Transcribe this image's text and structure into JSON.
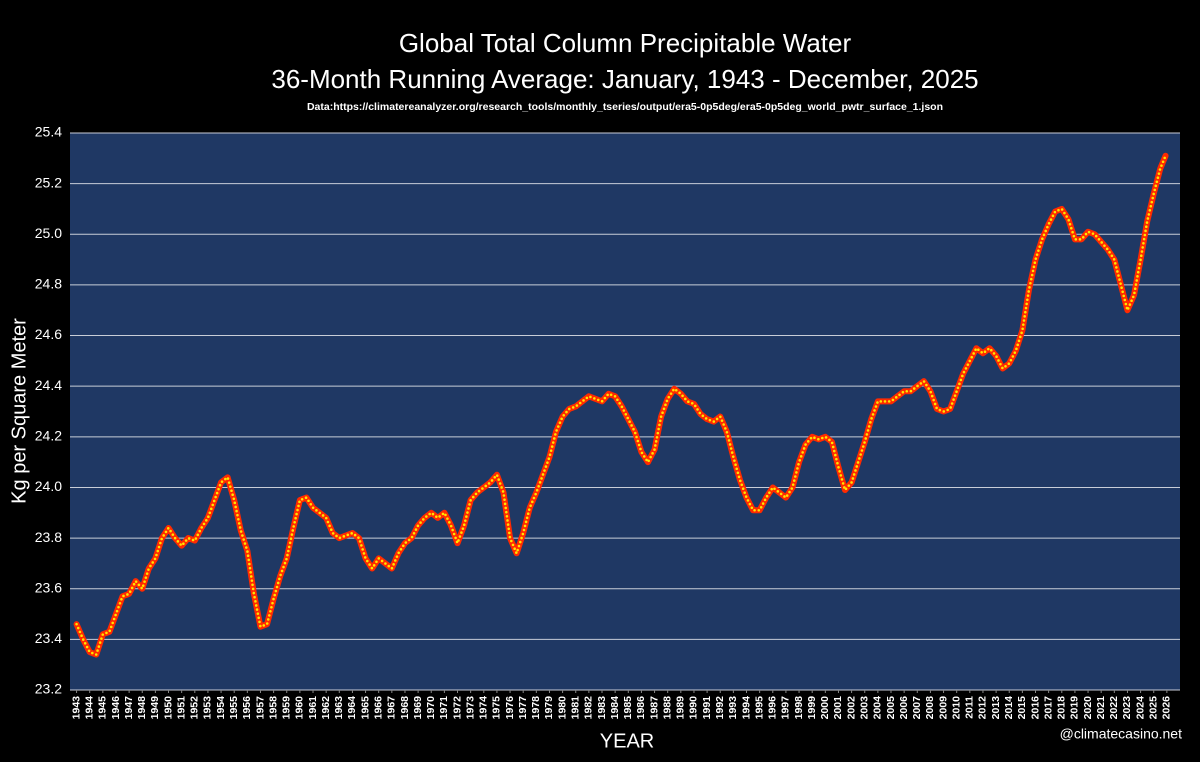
{
  "chart_data": {
    "type": "line",
    "title": "Global Total Column Precipitable Water",
    "subtitle": "36-Month Running Average: January, 1943 - December, 2025",
    "source": "Data:https://climatereanalyzer.org/research_tools/monthly_tseries/output/era5-0p5deg/era5-0p5deg_world_pwtr_surface_1.json",
    "xlabel": "YEAR",
    "ylabel": "Kg per Square Meter",
    "credit": "@climatecasino.net",
    "xlim": [
      1942.5,
      2027
    ],
    "ylim": [
      23.2,
      25.4
    ],
    "yticks": [
      23.2,
      23.4,
      23.6,
      23.8,
      {
        "value": 24,
        "label": "24.0"
      },
      24.2,
      24.4,
      24.6,
      24.8,
      {
        "value": 25,
        "label": "25.0"
      },
      25.2,
      25.4
    ],
    "xticks": [
      1943,
      1944,
      1945,
      1946,
      1947,
      1948,
      1949,
      1950,
      1951,
      1952,
      1953,
      1954,
      1955,
      1956,
      1957,
      1958,
      1959,
      1960,
      1961,
      1962,
      1963,
      1964,
      1965,
      1966,
      1967,
      1968,
      1969,
      1970,
      1971,
      1972,
      1973,
      1974,
      1975,
      1976,
      1977,
      1978,
      1979,
      1980,
      1981,
      1982,
      1983,
      1984,
      1985,
      1986,
      1987,
      1988,
      1989,
      1990,
      1991,
      1992,
      1993,
      1994,
      1995,
      1996,
      1997,
      1998,
      1999,
      2000,
      2001,
      2002,
      2003,
      2004,
      2005,
      2006,
      2007,
      2008,
      2009,
      2010,
      2011,
      2012,
      2013,
      2014,
      2015,
      2016,
      2017,
      2018,
      2019,
      2020,
      2021,
      2022,
      2023,
      2024,
      2025,
      2026
    ],
    "grid": true,
    "background": "#000000",
    "plot_color": "#1f3864",
    "series": [
      {
        "line_color": "#ff2a00",
        "marker_color": "#ffe600",
        "x": [
          1943.0,
          1943.5,
          1944.0,
          1944.5,
          1945.0,
          1945.5,
          1946.0,
          1946.5,
          1947.0,
          1947.5,
          1948.0,
          1948.5,
          1949.0,
          1949.5,
          1950.0,
          1950.5,
          1951.0,
          1951.5,
          1952.0,
          1952.5,
          1953.0,
          1953.5,
          1954.0,
          1954.5,
          1955.0,
          1955.5,
          1956.0,
          1956.5,
          1957.0,
          1957.5,
          1958.0,
          1958.5,
          1959.0,
          1959.5,
          1960.0,
          1960.5,
          1961.0,
          1961.5,
          1962.0,
          1962.5,
          1963.0,
          1963.5,
          1964.0,
          1964.5,
          1965.0,
          1965.5,
          1966.0,
          1966.5,
          1967.0,
          1967.5,
          1968.0,
          1968.5,
          1969.0,
          1969.5,
          1970.0,
          1970.5,
          1971.0,
          1971.5,
          1972.0,
          1972.5,
          1973.0,
          1973.5,
          1974.0,
          1974.5,
          1975.0,
          1975.5,
          1976.0,
          1976.5,
          1977.0,
          1977.5,
          1978.0,
          1978.5,
          1979.0,
          1979.5,
          1980.0,
          1980.5,
          1981.0,
          1981.5,
          1982.0,
          1982.5,
          1983.0,
          1983.5,
          1984.0,
          1984.5,
          1985.0,
          1985.5,
          1986.0,
          1986.5,
          1987.0,
          1987.5,
          1988.0,
          1988.5,
          1989.0,
          1989.5,
          1990.0,
          1990.5,
          1991.0,
          1991.5,
          1992.0,
          1992.5,
          1993.0,
          1993.5,
          1994.0,
          1994.5,
          1995.0,
          1995.5,
          1996.0,
          1996.5,
          1997.0,
          1997.5,
          1998.0,
          1998.5,
          1999.0,
          1999.5,
          2000.0,
          2000.5,
          2001.0,
          2001.5,
          2002.0,
          2002.5,
          2003.0,
          2003.5,
          2004.0,
          2004.5,
          2005.0,
          2005.5,
          2006.0,
          2006.5,
          2007.0,
          2007.5,
          2008.0,
          2008.5,
          2009.0,
          2009.5,
          2010.0,
          2010.5,
          2011.0,
          2011.5,
          2012.0,
          2012.5,
          2013.0,
          2013.5,
          2014.0,
          2014.5,
          2015.0,
          2015.5,
          2016.0,
          2016.5,
          2017.0,
          2017.5,
          2018.0,
          2018.5,
          2019.0,
          2019.5,
          2020.0,
          2020.5,
          2021.0,
          2021.5,
          2022.0,
          2022.5,
          2023.0,
          2023.5,
          2024.0,
          2024.5,
          2025.0,
          2025.5,
          2025.9
        ],
        "values": [
          23.46,
          23.4,
          23.35,
          23.34,
          23.42,
          23.43,
          23.5,
          23.57,
          23.58,
          23.63,
          23.6,
          23.68,
          23.72,
          23.8,
          23.84,
          23.8,
          23.77,
          23.8,
          23.79,
          23.84,
          23.88,
          23.95,
          24.02,
          24.04,
          23.95,
          23.83,
          23.75,
          23.58,
          23.45,
          23.46,
          23.56,
          23.65,
          23.72,
          23.84,
          23.95,
          23.96,
          23.92,
          23.9,
          23.88,
          23.82,
          23.8,
          23.81,
          23.82,
          23.8,
          23.72,
          23.68,
          23.72,
          23.7,
          23.68,
          23.74,
          23.78,
          23.8,
          23.85,
          23.88,
          23.9,
          23.88,
          23.9,
          23.85,
          23.78,
          23.85,
          23.95,
          23.98,
          24.0,
          24.02,
          24.05,
          23.98,
          23.8,
          23.74,
          23.82,
          23.92,
          23.98,
          24.05,
          24.12,
          24.22,
          24.28,
          24.31,
          24.32,
          24.34,
          24.36,
          24.35,
          24.34,
          24.37,
          24.36,
          24.32,
          24.27,
          24.22,
          24.14,
          24.1,
          24.15,
          24.28,
          24.35,
          24.39,
          24.37,
          24.34,
          24.33,
          24.29,
          24.27,
          24.26,
          24.28,
          24.22,
          24.12,
          24.03,
          23.96,
          23.91,
          23.91,
          23.96,
          24.0,
          23.98,
          23.96,
          24.0,
          24.1,
          24.17,
          24.2,
          24.19,
          24.2,
          24.18,
          24.08,
          23.99,
          24.02,
          24.1,
          24.18,
          24.27,
          24.34,
          24.34,
          24.34,
          24.36,
          24.38,
          24.38,
          24.4,
          24.42,
          24.38,
          24.31,
          24.3,
          24.31,
          24.38,
          24.45,
          24.5,
          24.55,
          24.53,
          24.55,
          24.52,
          24.47,
          24.49,
          24.54,
          24.62,
          24.78,
          24.9,
          24.98,
          25.04,
          25.09,
          25.1,
          25.06,
          24.98,
          24.98,
          25.01,
          25.0,
          24.97,
          24.94,
          24.9,
          24.8,
          24.7,
          24.76,
          24.9,
          25.05,
          25.16,
          25.26,
          25.31
        ]
      }
    ]
  }
}
